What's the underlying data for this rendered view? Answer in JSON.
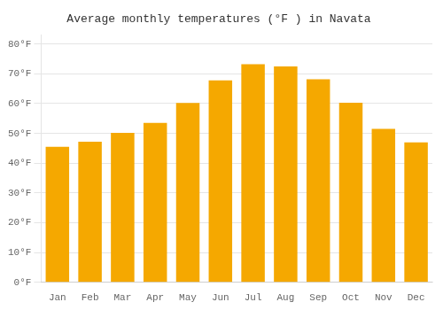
{
  "chart_data": {
    "type": "bar",
    "title": "Average monthly temperatures (°F ) in Navata",
    "categories": [
      "Jan",
      "Feb",
      "Mar",
      "Apr",
      "May",
      "Jun",
      "Jul",
      "Aug",
      "Sep",
      "Oct",
      "Nov",
      "Dec"
    ],
    "values": [
      45.5,
      47.2,
      50.2,
      53.5,
      60.2,
      67.8,
      73.2,
      72.5,
      68.2,
      60.3,
      51.5,
      47.0
    ],
    "color": "#F5A800",
    "ylim": [
      0,
      83
    ],
    "yticks": [
      {
        "value": 0,
        "label": "0°F"
      },
      {
        "value": 10,
        "label": "10°F"
      },
      {
        "value": 20,
        "label": "20°F"
      },
      {
        "value": 30,
        "label": "30°F"
      },
      {
        "value": 40,
        "label": "40°F"
      },
      {
        "value": 50,
        "label": "50°F"
      },
      {
        "value": 60,
        "label": "60°F"
      },
      {
        "value": 70,
        "label": "70°F"
      },
      {
        "value": 80,
        "label": "80°F"
      }
    ],
    "grid": true
  }
}
